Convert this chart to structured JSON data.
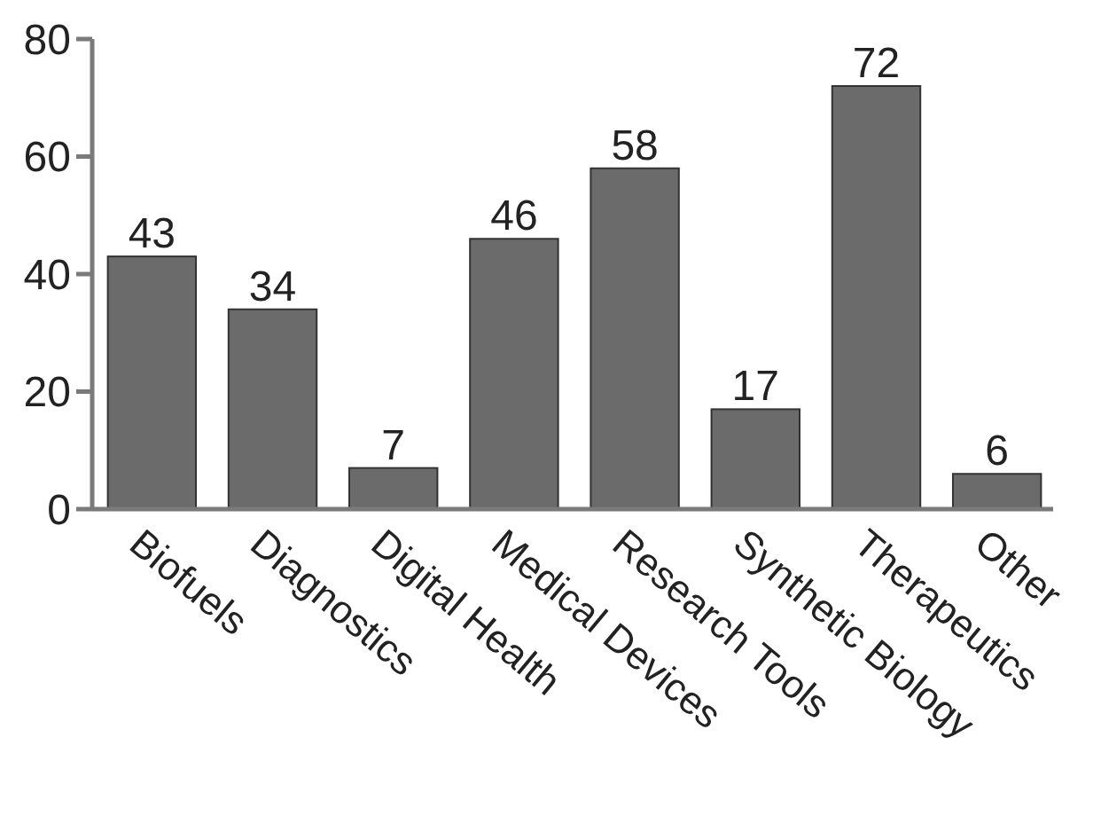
{
  "chart_data": {
    "type": "bar",
    "categories": [
      "Biofuels",
      "Diagnostics",
      "Digital Health",
      "Medical Devices",
      "Research Tools",
      "Synthetic Biology",
      "Therapeutics",
      "Other"
    ],
    "values": [
      43,
      34,
      7,
      46,
      58,
      17,
      72,
      6
    ],
    "color": "#6b6b6b",
    "ylim": [
      0,
      80
    ],
    "yticks": [
      0,
      20,
      40,
      60,
      80
    ],
    "grid": false,
    "data_labels": true
  }
}
